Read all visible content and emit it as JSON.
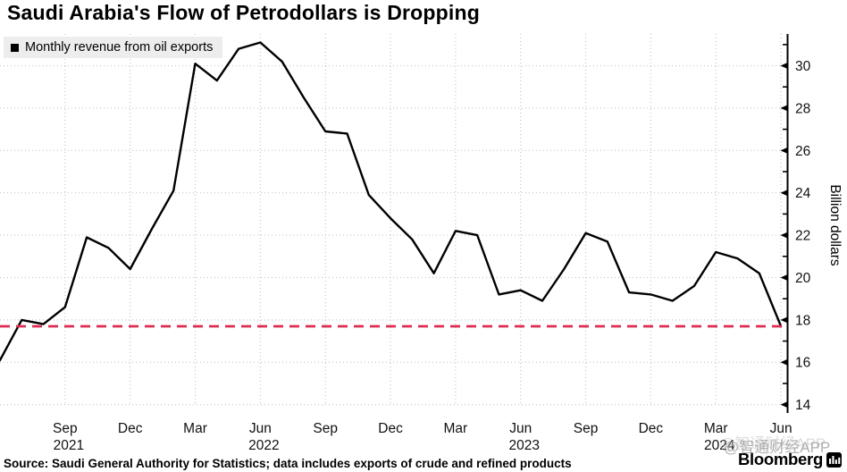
{
  "title": "Saudi Arabia's Flow of Petrodollars is Dropping",
  "legend": {
    "label": "Monthly revenue from oil exports"
  },
  "y_axis_unit": "Billion dollars",
  "footer": {
    "source": "Source: Saudi General Authority for Statistics; data includes exports of crude and refined products",
    "brand": "Bloomberg",
    "watermark": "@智通财经APP"
  },
  "colors": {
    "line": "#000000",
    "reference_line": "#dc2c50",
    "grid": "#c6c6c6",
    "axis": "#000000",
    "legend_bg": "#ededed",
    "watermark": "#9e9e9e"
  },
  "chart_data": {
    "type": "line",
    "title": "Saudi Arabia's Flow of Petrodollars is Dropping",
    "series_name": "Monthly revenue from oil exports",
    "ylabel": "Billion dollars",
    "grid": "dotted",
    "legend_position": "top-left",
    "x": [
      "Jun 2021",
      "Jul 2021",
      "Aug 2021",
      "Sep 2021",
      "Oct 2021",
      "Nov 2021",
      "Dec 2021",
      "Jan 2022",
      "Feb 2022",
      "Mar 2022",
      "Apr 2022",
      "May 2022",
      "Jun 2022",
      "Jul 2022",
      "Aug 2022",
      "Sep 2022",
      "Oct 2022",
      "Nov 2022",
      "Dec 2022",
      "Jan 2023",
      "Feb 2023",
      "Mar 2023",
      "Apr 2023",
      "May 2023",
      "Jun 2023",
      "Jul 2023",
      "Aug 2023",
      "Sep 2023",
      "Oct 2023",
      "Nov 2023",
      "Dec 2023",
      "Jan 2024",
      "Feb 2024",
      "Mar 2024",
      "Apr 2024",
      "May 2024",
      "Jun 2024"
    ],
    "values": [
      16.1,
      18.0,
      17.8,
      18.6,
      21.9,
      21.4,
      20.4,
      22.3,
      24.1,
      30.1,
      29.3,
      30.8,
      31.1,
      30.2,
      28.5,
      26.9,
      26.8,
      23.9,
      22.8,
      21.8,
      20.2,
      22.2,
      22.0,
      19.2,
      19.4,
      18.9,
      20.4,
      22.1,
      21.7,
      19.3,
      19.2,
      18.9,
      19.6,
      21.2,
      20.9,
      20.2,
      17.7
    ],
    "reference_line": {
      "value": 17.7,
      "style": "dashed",
      "color": "#dc2c50"
    },
    "ylim": [
      13.9,
      31.5
    ],
    "y_major_ticks": [
      14,
      16,
      18,
      20,
      22,
      24,
      26,
      28,
      30
    ],
    "y_minor_ticks": [
      15,
      17,
      19,
      21,
      23,
      25,
      27,
      29,
      31
    ],
    "x_ticks": [
      {
        "index": 3,
        "month": "Sep",
        "year": "2021"
      },
      {
        "index": 6,
        "month": "Dec"
      },
      {
        "index": 9,
        "month": "Mar"
      },
      {
        "index": 12,
        "month": "Jun",
        "year": "2022"
      },
      {
        "index": 15,
        "month": "Sep"
      },
      {
        "index": 18,
        "month": "Dec"
      },
      {
        "index": 21,
        "month": "Mar"
      },
      {
        "index": 24,
        "month": "Jun",
        "year": "2023"
      },
      {
        "index": 27,
        "month": "Sep"
      },
      {
        "index": 30,
        "month": "Dec"
      },
      {
        "index": 33,
        "month": "Mar",
        "year": "2024"
      },
      {
        "index": 36,
        "month": "Jun"
      }
    ]
  }
}
